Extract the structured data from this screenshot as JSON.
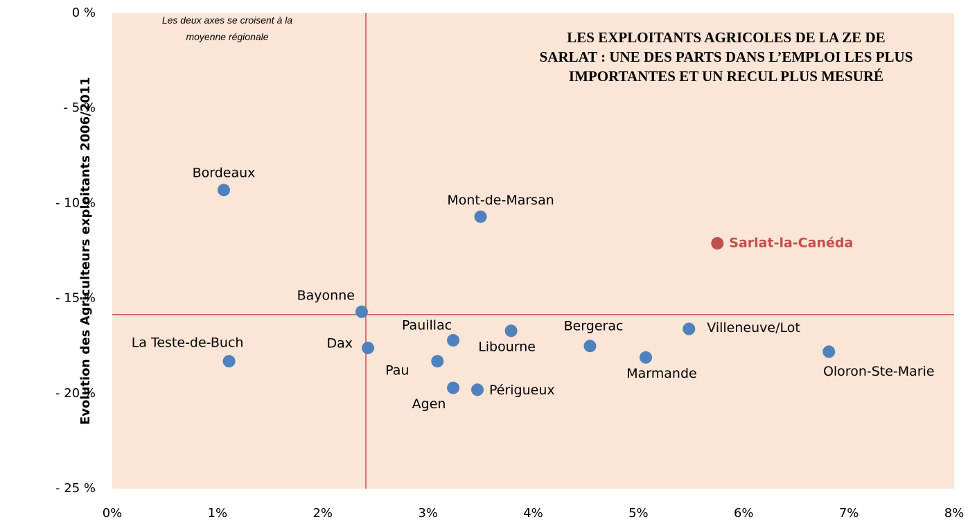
{
  "chart_data": {
    "type": "scatter",
    "title": "LES EXPLOITANTS AGRICOLES DE LA ZE DE SARLAT : UNE DES PARTS DANS L’EMPLOI LES PLUS IMPORTANTES ET UN RECUL PLUS MESURÉ",
    "annotation": "Les deux axes se croisent à la moyenne régionale",
    "y_label": "Evolution des Agriculteurs exploitants 2006/2011",
    "xlim": [
      0,
      8
    ],
    "ylim": [
      -25,
      0
    ],
    "xticks": [
      {
        "value": 0,
        "label": "0%"
      },
      {
        "value": 1,
        "label": "1%"
      },
      {
        "value": 2,
        "label": "2%"
      },
      {
        "value": 3,
        "label": "3%"
      },
      {
        "value": 4,
        "label": "4%"
      },
      {
        "value": 5,
        "label": "5%"
      },
      {
        "value": 6,
        "label": "6%"
      },
      {
        "value": 7,
        "label": "7%"
      },
      {
        "value": 8,
        "label": "8%"
      }
    ],
    "yticks": [
      {
        "value": 0,
        "label": "0 %"
      },
      {
        "value": -5,
        "label": "- 5 %"
      },
      {
        "value": -10,
        "label": "- 10 %"
      },
      {
        "value": -15,
        "label": "- 15 %"
      },
      {
        "value": -20,
        "label": "- 20 %"
      },
      {
        "value": -25,
        "label": "- 25 %"
      }
    ],
    "reference_x": 2.41,
    "reference_y": -15.85,
    "reference_color": "#c0504d",
    "plot_background": "#fbe5d6",
    "series": [
      {
        "color": "#4f81bd",
        "labels": [
          "Bordeaux",
          "La Teste-de-Buch",
          "Bayonne",
          "Dax",
          "Pau",
          "Agen",
          "Pauillac",
          "Périgueux",
          "Libourne",
          "Mont-de-Marsan",
          "Bergerac",
          "Marmande",
          "Villeneuve/Lot",
          "Oloron-Ste-Marie"
        ],
        "x": [
          1.06,
          1.11,
          2.37,
          2.43,
          3.09,
          3.24,
          3.24,
          3.47,
          3.79,
          3.5,
          4.54,
          5.07,
          5.48,
          6.81
        ],
        "values": [
          -9.3,
          -18.3,
          -15.7,
          -17.6,
          -18.3,
          -19.7,
          -17.2,
          -19.8,
          -16.7,
          -10.7,
          -17.5,
          -18.1,
          -16.6,
          -17.8
        ]
      },
      {
        "color": "#c0504d",
        "labels": [
          "Sarlat-la-Canéda"
        ],
        "x": [
          5.75
        ],
        "values": [
          -12.1
        ]
      }
    ]
  }
}
